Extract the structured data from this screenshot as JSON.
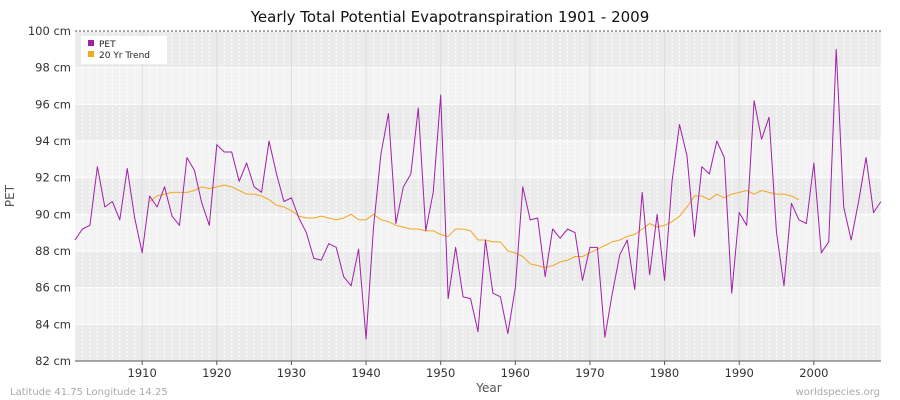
{
  "chart_data": {
    "type": "line",
    "title": "Yearly Total Potential Evapotranspiration 1901 - 2009",
    "xlabel": "Year",
    "ylabel": "PET",
    "xlim": [
      1901,
      2009
    ],
    "ylim": [
      82,
      100
    ],
    "yticks": [
      82,
      84,
      86,
      88,
      90,
      92,
      94,
      96,
      98,
      100
    ],
    "ytick_labels": [
      "82 cm",
      "84 cm",
      "86 cm",
      "88 cm",
      "90 cm",
      "92 cm",
      "94 cm",
      "96 cm",
      "98 cm",
      "100 cm"
    ],
    "xticks": [
      1910,
      1920,
      1930,
      1940,
      1950,
      1960,
      1970,
      1980,
      1990,
      2000
    ],
    "xtick_labels": [
      "1910",
      "1920",
      "1930",
      "1940",
      "1950",
      "1960",
      "1970",
      "1980",
      "1990",
      "2000"
    ],
    "grid": true,
    "legend_position": "top-left",
    "series": [
      {
        "name": "PET",
        "color": "#a020a8",
        "x_start": 1901,
        "values": [
          88.6,
          89.2,
          89.4,
          92.6,
          90.4,
          90.7,
          89.7,
          92.5,
          89.8,
          87.9,
          91.0,
          90.4,
          91.5,
          89.9,
          89.4,
          93.1,
          92.4,
          90.6,
          89.4,
          93.8,
          93.4,
          93.4,
          91.8,
          92.8,
          91.5,
          91.2,
          94.0,
          92.2,
          90.7,
          90.9,
          89.8,
          89.0,
          87.6,
          87.5,
          88.4,
          88.2,
          86.6,
          86.1,
          88.1,
          83.2,
          89.3,
          93.3,
          95.5,
          89.5,
          91.5,
          92.2,
          95.8,
          89.1,
          91.2,
          96.5,
          85.4,
          88.2,
          85.5,
          85.4,
          83.6,
          88.6,
          85.7,
          85.5,
          83.5,
          86.0,
          91.5,
          89.7,
          89.8,
          86.6,
          89.2,
          88.7,
          89.2,
          89.0,
          86.4,
          88.2,
          88.2,
          83.3,
          85.7,
          87.8,
          88.6,
          85.9,
          91.2,
          86.7,
          90.0,
          86.4,
          91.8,
          94.9,
          93.2,
          88.8,
          92.6,
          92.2,
          94.0,
          93.1,
          85.7,
          90.1,
          89.4,
          96.2,
          94.1,
          95.3,
          89.0,
          86.1,
          90.6,
          89.7,
          89.5,
          92.8,
          87.9,
          88.5,
          99.0,
          90.4,
          88.6,
          90.7,
          93.1,
          90.1,
          90.7
        ]
      },
      {
        "name": "20 Yr Trend",
        "color": "#f5a623",
        "x_start": 1911,
        "values": [
          90.7,
          91.0,
          91.1,
          91.2,
          91.2,
          91.2,
          91.3,
          91.5,
          91.4,
          91.5,
          91.6,
          91.5,
          91.3,
          91.1,
          91.1,
          91.0,
          90.8,
          90.5,
          90.4,
          90.2,
          89.9,
          89.8,
          89.8,
          89.9,
          89.8,
          89.7,
          89.8,
          90.0,
          89.7,
          89.7,
          90.0,
          89.7,
          89.6,
          89.4,
          89.3,
          89.2,
          89.2,
          89.1,
          89.1,
          88.9,
          88.8,
          89.2,
          89.2,
          89.1,
          88.6,
          88.6,
          88.5,
          88.5,
          88.0,
          87.9,
          87.7,
          87.3,
          87.2,
          87.1,
          87.2,
          87.4,
          87.5,
          87.7,
          87.7,
          87.9,
          88.1,
          88.3,
          88.5,
          88.6,
          88.8,
          88.9,
          89.2,
          89.5,
          89.3,
          89.4,
          89.6,
          89.9,
          90.4,
          91.0,
          91.0,
          90.8,
          91.1,
          90.9,
          91.1,
          91.2,
          91.3,
          91.1,
          91.3,
          91.2,
          91.1,
          91.1,
          91.0,
          90.8
        ]
      }
    ]
  },
  "footer": {
    "location": "Latitude 41.75 Longitude 14.25",
    "source": "worldspecies.org"
  }
}
